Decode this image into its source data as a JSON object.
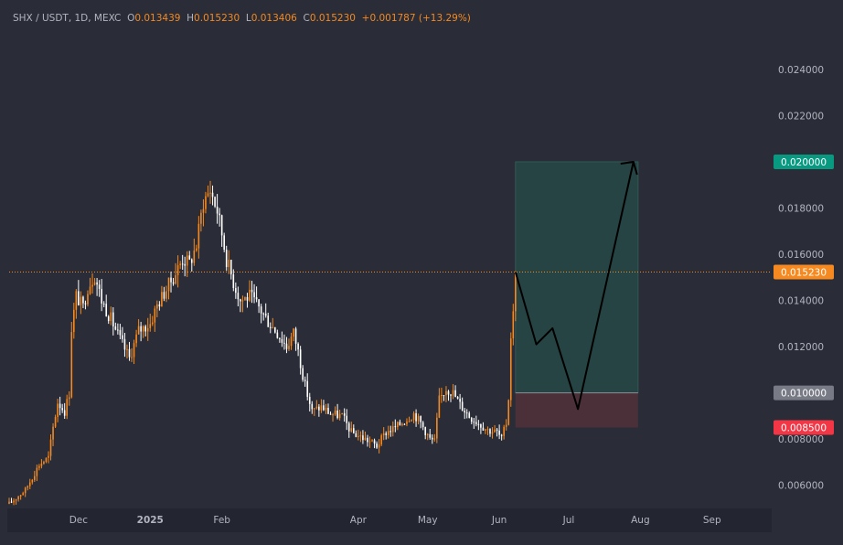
{
  "header": {
    "symbol": "SHX / USDT, 1D, MEXC",
    "open_label": "O",
    "open_value": "0.013439",
    "high_label": "H",
    "high_value": "0.015230",
    "low_label": "L",
    "low_value": "0.013406",
    "close_label": "C",
    "close_value": "0.015230",
    "change": "+0.001787 (+13.29%)"
  },
  "colors": {
    "background": "#2a2d37",
    "up_candle": "#f6891f",
    "down_candle": "#ffffff",
    "target_zone": "#264443",
    "stop_zone": "#4b3039",
    "target_badge": "#089981",
    "current_badge": "#f6891f",
    "entry_badge": "#787b86",
    "stop_badge": "#f23645",
    "projection_line": "#000000"
  },
  "chart_data": {
    "type": "candlestick",
    "title": "",
    "xlabel": "",
    "ylabel": "",
    "ylim": [
      0.005,
      0.0255
    ],
    "x_range": [
      "2024-11-01",
      "2025-09-26"
    ],
    "grid": false,
    "price_scale_ticks": [
      "0.006000",
      "0.008000",
      "0.010000",
      "0.012000",
      "0.014000",
      "0.016000",
      "0.018000",
      "0.020000",
      "0.022000",
      "0.024000"
    ],
    "time_axis_ticks": [
      {
        "label": "Dec",
        "date": "2024-12-01"
      },
      {
        "label": "2025",
        "date": "2025-01-01"
      },
      {
        "label": "Feb",
        "date": "2025-02-01"
      },
      {
        "label": "Apr",
        "date": "2025-04-01"
      },
      {
        "label": "May",
        "date": "2025-05-01"
      },
      {
        "label": "Jun",
        "date": "2025-06-01"
      },
      {
        "label": "Jul",
        "date": "2025-07-01"
      },
      {
        "label": "Aug",
        "date": "2025-08-01"
      },
      {
        "label": "Sep",
        "date": "2025-09-01"
      }
    ],
    "price_anchors": [
      [
        "2024-11-01",
        0.0052
      ],
      [
        "2024-11-08",
        0.0058
      ],
      [
        "2024-11-14",
        0.0069
      ],
      [
        "2024-11-18",
        0.0072
      ],
      [
        "2024-11-20",
        0.0085
      ],
      [
        "2024-11-22",
        0.0096
      ],
      [
        "2024-11-25",
        0.0092
      ],
      [
        "2024-11-27",
        0.01
      ],
      [
        "2024-11-28",
        0.0128
      ],
      [
        "2024-11-30",
        0.0142
      ],
      [
        "2024-12-03",
        0.0137
      ],
      [
        "2024-12-05",
        0.0146
      ],
      [
        "2024-12-08",
        0.0151
      ],
      [
        "2024-12-11",
        0.014
      ],
      [
        "2024-12-15",
        0.0132
      ],
      [
        "2024-12-19",
        0.0123
      ],
      [
        "2024-12-23",
        0.0115
      ],
      [
        "2024-12-27",
        0.0127
      ],
      [
        "2025-01-01",
        0.013
      ],
      [
        "2025-01-04",
        0.0138
      ],
      [
        "2025-01-08",
        0.0145
      ],
      [
        "2025-01-12",
        0.0152
      ],
      [
        "2025-01-15",
        0.0158
      ],
      [
        "2025-01-18",
        0.0156
      ],
      [
        "2025-01-21",
        0.0164
      ],
      [
        "2025-01-24",
        0.0183
      ],
      [
        "2025-01-27",
        0.0188
      ],
      [
        "2025-01-30",
        0.0179
      ],
      [
        "2025-02-01",
        0.0169
      ],
      [
        "2025-02-03",
        0.0158
      ],
      [
        "2025-02-06",
        0.0148
      ],
      [
        "2025-02-09",
        0.014
      ],
      [
        "2025-02-13",
        0.0142
      ],
      [
        "2025-02-17",
        0.0137
      ],
      [
        "2025-02-21",
        0.0131
      ],
      [
        "2025-02-25",
        0.0126
      ],
      [
        "2025-03-01",
        0.012
      ],
      [
        "2025-03-04",
        0.0126
      ],
      [
        "2025-03-06",
        0.0118
      ],
      [
        "2025-03-09",
        0.0103
      ],
      [
        "2025-03-12",
        0.0092
      ],
      [
        "2025-03-16",
        0.0094
      ],
      [
        "2025-03-20",
        0.0091
      ],
      [
        "2025-03-25",
        0.009
      ],
      [
        "2025-03-29",
        0.0083
      ],
      [
        "2025-04-02",
        0.0081
      ],
      [
        "2025-04-06",
        0.0079
      ],
      [
        "2025-04-09",
        0.0077
      ],
      [
        "2025-04-13",
        0.0083
      ],
      [
        "2025-04-17",
        0.0085
      ],
      [
        "2025-04-21",
        0.0088
      ],
      [
        "2025-04-25",
        0.0091
      ],
      [
        "2025-04-28",
        0.0087
      ],
      [
        "2025-05-02",
        0.008
      ],
      [
        "2025-05-04",
        0.0079
      ],
      [
        "2025-05-06",
        0.0097
      ],
      [
        "2025-05-09",
        0.0102
      ],
      [
        "2025-05-12",
        0.01
      ],
      [
        "2025-05-15",
        0.0095
      ],
      [
        "2025-05-19",
        0.009
      ],
      [
        "2025-05-23",
        0.0087
      ],
      [
        "2025-05-27",
        0.0084
      ],
      [
        "2025-05-31",
        0.0083
      ],
      [
        "2025-06-02",
        0.008
      ],
      [
        "2025-06-04",
        0.0087
      ],
      [
        "2025-06-05",
        0.0098
      ],
      [
        "2025-06-06",
        0.0125
      ],
      [
        "2025-06-07",
        0.0134
      ],
      [
        "2025-06-08",
        0.01523
      ]
    ],
    "last_price": 0.01523,
    "position": {
      "start_date": "2025-06-08",
      "end_date": "2025-07-31",
      "entry": 0.01,
      "target": 0.02,
      "stop": 0.0085
    },
    "projection_path": [
      [
        "2025-06-08",
        0.01523
      ],
      [
        "2025-06-17",
        0.0121
      ],
      [
        "2025-06-24",
        0.0128
      ],
      [
        "2025-07-05",
        0.0093
      ],
      [
        "2025-07-29",
        0.02
      ]
    ],
    "price_badges": [
      {
        "label": "0.020000",
        "value": 0.02,
        "color": "#089981"
      },
      {
        "label": "0.015230",
        "value": 0.01523,
        "color": "#f6891f"
      },
      {
        "label": "0.010000",
        "value": 0.01,
        "color": "#787b86"
      },
      {
        "label": "0.008500",
        "value": 0.0085,
        "color": "#f23645"
      }
    ]
  }
}
